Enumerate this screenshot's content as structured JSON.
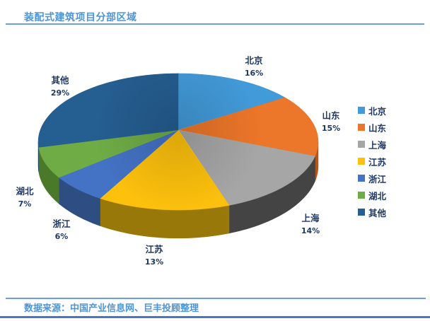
{
  "title": "装配式建筑项目分部区域",
  "footer": {
    "source_text": "数据来源：中国产业信息网、巨丰投顾整理"
  },
  "chart_data": {
    "type": "pie",
    "style": "3d",
    "title": "装配式建筑项目分部区域",
    "categories": [
      "北京",
      "山东",
      "上海",
      "江苏",
      "浙江",
      "湖北",
      "其他"
    ],
    "values": [
      16,
      15,
      14,
      13,
      6,
      7,
      29
    ],
    "unit": "%",
    "data_labels": [
      "北京 16%",
      "山东 15%",
      "上海 14%",
      "江苏 13%",
      "浙江 6%",
      "湖北 7%",
      "其他 29%"
    ],
    "colors": [
      "#429BD9",
      "#EC7629",
      "#A6A6A6",
      "#FDC10D",
      "#4472C4",
      "#6FAC46",
      "#255E91"
    ],
    "side_colors": [
      "#27639A",
      "#B5541A",
      "#444444",
      "#99780A",
      "#2E4D80",
      "#4A7929",
      "#1C4669"
    ],
    "legend_position": "right",
    "label_text_color": "#1F3864",
    "start_angle_deg": 0,
    "direction": "clockwise"
  }
}
